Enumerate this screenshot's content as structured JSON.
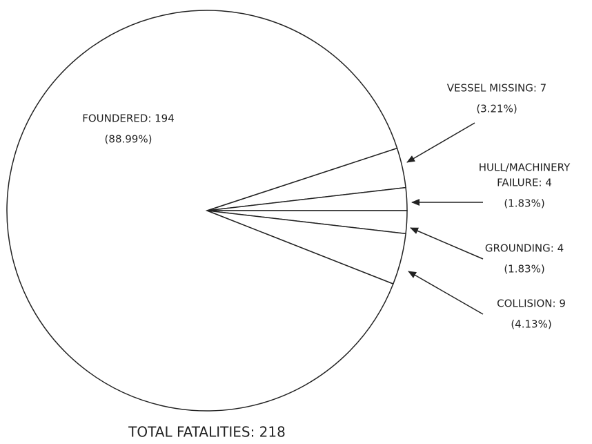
{
  "chart_data": {
    "type": "pie",
    "values": [
      7,
      4,
      4,
      9,
      194
    ],
    "value_labels": [
      [
        "VESSEL MISSING: 7"
      ],
      [
        "HULL/MACHINERY",
        "FAILURE: 4"
      ],
      [
        "GROUNDING: 4"
      ],
      [
        "COLLISION: 9"
      ],
      [
        "FOUNDERED: 194"
      ]
    ],
    "percents": [
      3.21,
      1.83,
      1.83,
      4.13,
      88.99
    ],
    "percent_labels": [
      "(3.21%)",
      "(1.83%)",
      "(1.83%)",
      "(4.13%)",
      "(88.99%)"
    ],
    "color": "#ffffff",
    "footer": "TOTAL FATALITIES: 218"
  }
}
